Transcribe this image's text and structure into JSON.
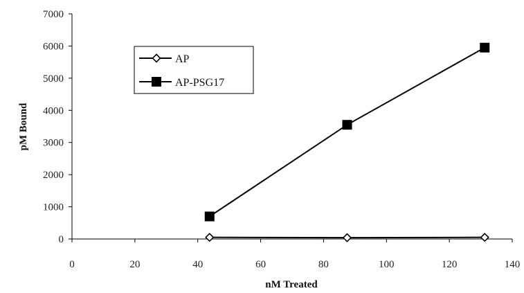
{
  "chart_data": {
    "type": "line",
    "xlabel": "nM Treated",
    "ylabel": "pM Bound",
    "xlim": [
      0,
      140
    ],
    "ylim": [
      0,
      7000
    ],
    "x_ticks": [
      "0",
      "20",
      "40",
      "60",
      "80",
      "100",
      "120",
      "140"
    ],
    "y_ticks": [
      "0",
      "1000",
      "2000",
      "3000",
      "4000",
      "5000",
      "6000",
      "7000"
    ],
    "grid": false,
    "legend_position": "top-left",
    "series": [
      {
        "name": "AP",
        "marker": "open-diamond",
        "color": "#000000",
        "x": [
          43.75,
          87.5,
          131.25
        ],
        "y": [
          50,
          40,
          50
        ]
      },
      {
        "name": "AP-PSG17",
        "marker": "filled-square",
        "color": "#000000",
        "x": [
          43.75,
          87.5,
          131.25
        ],
        "y": [
          700,
          3550,
          5950
        ]
      }
    ]
  }
}
